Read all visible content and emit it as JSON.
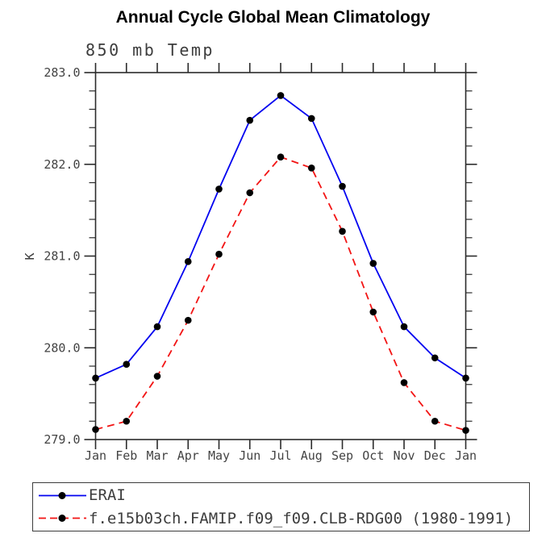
{
  "header": {
    "title": "Annual Cycle Global Mean Climatology"
  },
  "chart_data": {
    "type": "line",
    "title": "Annual Cycle Global Mean Climatology",
    "subtitle": "850 mb Temp",
    "xlabel": "",
    "ylabel": "K",
    "categories": [
      "Jan",
      "Feb",
      "Mar",
      "Apr",
      "May",
      "Jun",
      "Jul",
      "Aug",
      "Sep",
      "Oct",
      "Nov",
      "Dec",
      "Jan"
    ],
    "ylim": [
      279.0,
      283.0
    ],
    "y_tick_labels": [
      "283.0",
      "282.0",
      "281.0",
      "280.0",
      "279.0"
    ],
    "y_major_values": [
      283.0,
      282.0,
      281.0,
      280.0,
      279.0
    ],
    "y_minor_step": 0.2,
    "grid": false,
    "legend_position": "bottom-box",
    "marker": "filled-circle",
    "marker_color": "#000000",
    "axis_color": "#2b2b2b",
    "series": [
      {
        "name": "ERAI",
        "color": "#0202f0",
        "line_style": "solid",
        "values": [
          279.67,
          279.82,
          280.23,
          280.94,
          281.73,
          282.48,
          282.75,
          282.5,
          281.76,
          280.92,
          280.23,
          279.89,
          279.67
        ]
      },
      {
        "name": "f.e15b03ch.FAMIP.f09_f09.CLB-RDG00 (1980-1991)",
        "color": "#f21414",
        "line_style": "dashed",
        "values": [
          279.11,
          279.2,
          279.69,
          280.3,
          281.02,
          281.69,
          282.08,
          281.96,
          281.27,
          280.39,
          279.62,
          279.2,
          279.1
        ]
      }
    ]
  }
}
